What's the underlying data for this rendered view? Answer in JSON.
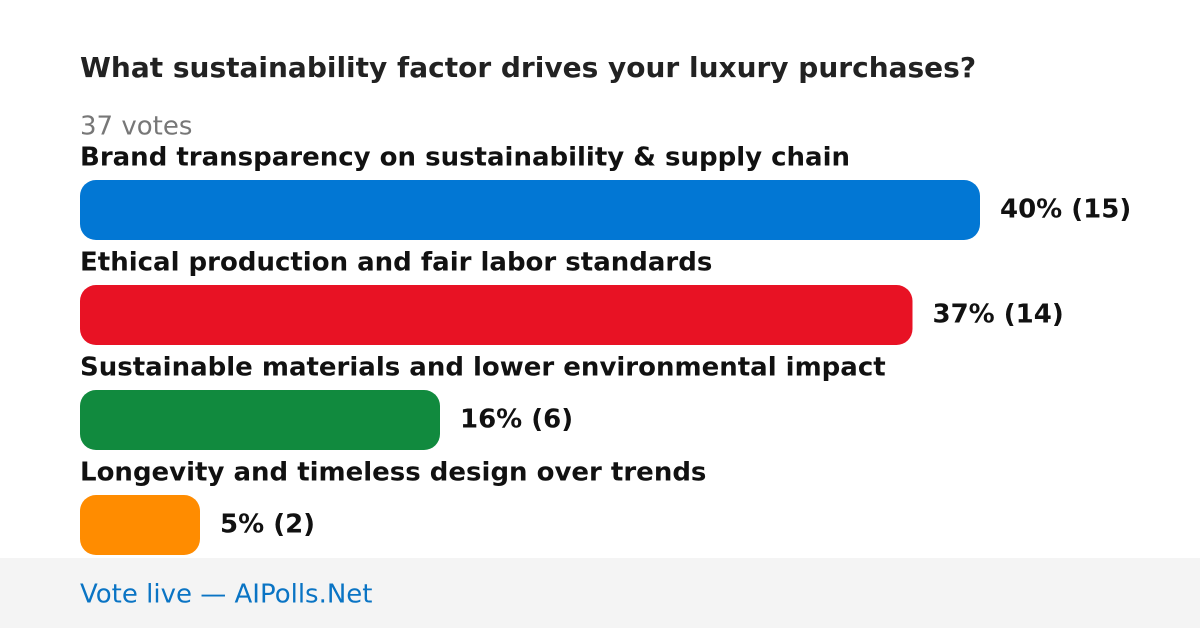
{
  "chart_data": {
    "type": "bar",
    "orientation": "horizontal",
    "title": "What sustainability factor drives your luxury purchases?",
    "subtitle": "37 votes",
    "categories": [
      "Brand transparency on sustainability & supply chain",
      "Ethical production and fair labor standards",
      "Sustainable materials and lower environmental impact",
      "Longevity and timeless design over trends"
    ],
    "values": [
      40,
      37,
      16,
      5
    ],
    "value_labels": [
      "40% (15)",
      "37% (14)",
      "16% (6)",
      "5% (2)"
    ],
    "colors": [
      "#0277d4",
      "#e81224",
      "#118a3e",
      "#ff8c00"
    ],
    "footer": "Vote live — AIPolls.Net"
  }
}
